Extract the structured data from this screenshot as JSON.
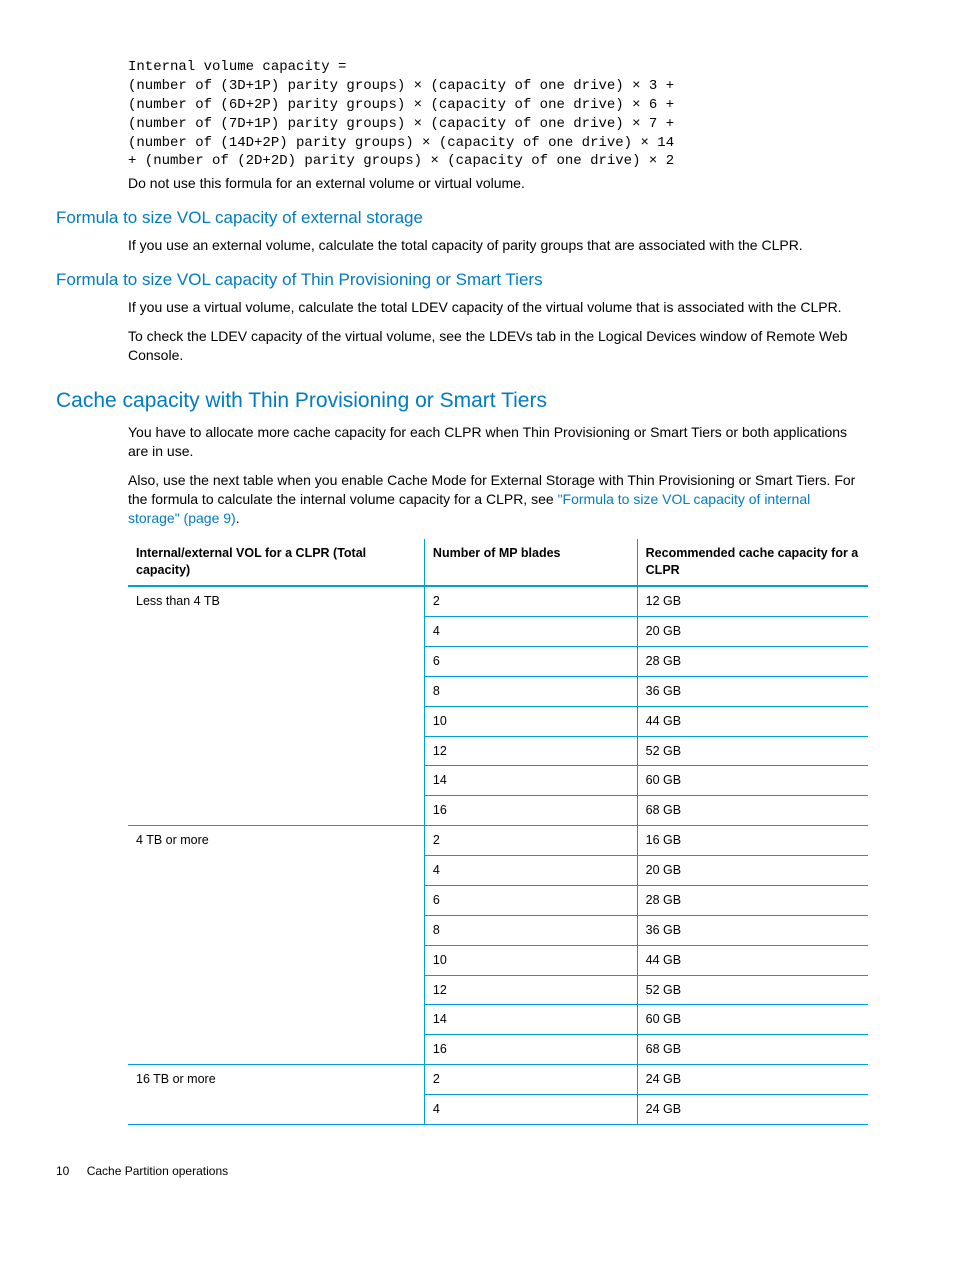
{
  "codeblock": "Internal volume capacity =\n(number of (3D+1P) parity groups) × (capacity of one drive) × 3 +\n(number of (6D+2P) parity groups) × (capacity of one drive) × 6 +\n(number of (7D+1P) parity groups) × (capacity of one drive) × 7 +\n(number of (14D+2P) parity groups) × (capacity of one drive) × 14\n+ (number of (2D+2D) parity groups) × (capacity of one drive) × 2",
  "dontUse": "Do not use this formula for an external volume or virtual volume.",
  "sec1": {
    "title": "Formula to size VOL capacity of external storage",
    "p1": "If you use an external volume, calculate the total capacity of parity groups that are associated with the CLPR."
  },
  "sec2": {
    "title": "Formula to size VOL capacity of Thin Provisioning or Smart Tiers",
    "p1": "If you use a virtual volume, calculate the total LDEV capacity of the virtual volume that is associated with the CLPR.",
    "p2": "To check the LDEV capacity of the virtual volume, see the LDEVs tab in the Logical Devices window of Remote Web Console."
  },
  "sec3": {
    "title": "Cache capacity with Thin Provisioning or Smart Tiers",
    "p1": "You have to allocate more cache capacity for each CLPR when Thin Provisioning or Smart Tiers or both applications are in use.",
    "p2a": "Also, use the next table when you enable Cache Mode for External Storage with Thin Provisioning or Smart Tiers. For the formula to calculate the internal volume capacity for a CLPR, see ",
    "p2link": "\"Formula to size VOL capacity of internal storage\" (page 9)",
    "p2b": "."
  },
  "table": {
    "headers": [
      "Internal/external VOL for a CLPR (Total capacity)",
      "Number of MP blades",
      "Recommended cache capacity for a CLPR"
    ],
    "rows": [
      [
        "Less than 4 TB",
        "2",
        "12 GB"
      ],
      [
        "",
        "4",
        "20 GB"
      ],
      [
        "",
        "6",
        "28 GB"
      ],
      [
        "",
        "8",
        "36 GB"
      ],
      [
        "",
        "10",
        "44 GB"
      ],
      [
        "",
        "12",
        "52 GB"
      ],
      [
        "",
        "14",
        "60 GB"
      ],
      [
        "",
        "16",
        "68 GB"
      ],
      [
        "4 TB or more",
        "2",
        "16 GB"
      ],
      [
        "",
        "4",
        "20 GB"
      ],
      [
        "",
        "6",
        "28 GB"
      ],
      [
        "",
        "8",
        "36 GB"
      ],
      [
        "",
        "10",
        "44 GB"
      ],
      [
        "",
        "12",
        "52 GB"
      ],
      [
        "",
        "14",
        "60 GB"
      ],
      [
        "",
        "16",
        "68 GB"
      ],
      [
        "16 TB or more",
        "2",
        "24 GB"
      ],
      [
        "",
        "4",
        "24 GB"
      ]
    ],
    "colWidths": [
      "300px",
      "212px",
      "228px"
    ]
  },
  "footer": {
    "page": "10",
    "chapter": "Cache Partition operations"
  },
  "colors": {
    "accent": "#007cc1",
    "tableBorder": "#009fda"
  },
  "typography": {
    "bodyFont": "Arial",
    "monoFont": "Courier New",
    "bodySize": 14,
    "h1Size": 21,
    "h2Size": 17,
    "tableSize": 12.5,
    "footerSize": 12
  }
}
